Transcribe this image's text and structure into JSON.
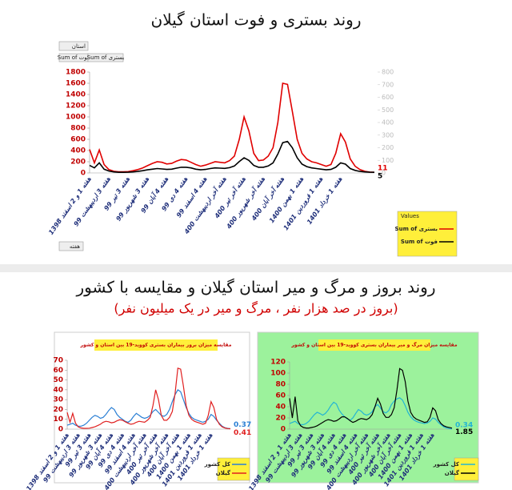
{
  "section_title": "روند بروز و مرگ و میر استان گیلان و مقایسه با کشور",
  "section_subtitle": "(بروز در صد هزار نفر ، مرگ و میر در یک میلیون نفر)",
  "chart_data": [
    {
      "type": "line",
      "title": "روند بستری و فوت استان گیلان",
      "filter_field": "استان",
      "axis_field": "هفته",
      "legend_title": "Values",
      "legend": "bottom-right",
      "categories": [
        "هفته 1 و 2 اسفند 1398",
        null,
        null,
        null,
        "هفته 3 اردیبهشت 99",
        null,
        null,
        null,
        "هفته 3 تیر 99",
        null,
        null,
        null,
        "هفته 3 شهریور 99",
        null,
        null,
        null,
        "هفته 4 آبان 99",
        null,
        null,
        null,
        "هفته 4 دی 99",
        null,
        null,
        null,
        "هفته 4 اسفند 99",
        null,
        null,
        null,
        "هفته آخر اردیبهشت 400",
        null,
        null,
        null,
        "هفته آخر تیر 400",
        null,
        null,
        null,
        "هفته آخر شهریور 400",
        null,
        null,
        null,
        "هفته آخر آبان 400",
        null,
        null,
        null,
        "هفته 1 بهمن 1400",
        null,
        null,
        null,
        "هفته 1 فروردین 1401",
        null,
        null,
        null,
        "هفته 1 خرداد 1401",
        null,
        null,
        null,
        null,
        null,
        null,
        null
      ],
      "ylim": [
        0,
        1800
      ],
      "yticks": [
        0,
        200,
        400,
        600,
        800,
        1000,
        1200,
        1400,
        1600,
        1800
      ],
      "y2lim": [
        0,
        800
      ],
      "y2ticks": [
        0,
        100,
        200,
        300,
        400,
        500,
        600,
        700,
        800
      ],
      "series": [
        {
          "name": "Sum of بستری",
          "color": "#e00000",
          "values": [
            420,
            180,
            410,
            150,
            60,
            30,
            20,
            20,
            25,
            40,
            60,
            90,
            130,
            170,
            200,
            190,
            160,
            170,
            210,
            240,
            230,
            190,
            150,
            120,
            140,
            170,
            200,
            190,
            180,
            220,
            300,
            600,
            1000,
            750,
            350,
            220,
            230,
            300,
            450,
            900,
            1600,
            1580,
            1100,
            600,
            350,
            250,
            200,
            180,
            150,
            120,
            150,
            350,
            700,
            550,
            250,
            120,
            60,
            30,
            15,
            11
          ]
        },
        {
          "name": "Sum of فوت",
          "color": "#000000",
          "axis": "y2",
          "values": [
            60,
            40,
            80,
            30,
            15,
            8,
            5,
            5,
            6,
            8,
            12,
            18,
            25,
            30,
            35,
            32,
            28,
            30,
            38,
            45,
            45,
            40,
            30,
            25,
            28,
            35,
            40,
            38,
            36,
            42,
            55,
            90,
            120,
            100,
            60,
            45,
            45,
            55,
            80,
            150,
            240,
            250,
            200,
            120,
            70,
            50,
            40,
            35,
            30,
            25,
            28,
            45,
            80,
            70,
            35,
            20,
            12,
            8,
            6,
            5
          ]
        }
      ]
    },
    {
      "type": "line",
      "title": "مقایسه میزان بروز بیماران بستری کووید-19 بین استان و کشور",
      "legend": "bottom-right",
      "background": "#ffffff",
      "categories": [
        "هفته 1 و 2 اسفند 1398",
        null,
        null,
        null,
        "هفته 3 اردیبهشت 99",
        null,
        null,
        null,
        "هفته 3 تیر 99",
        null,
        null,
        null,
        "هفته 3 شهریور 99",
        null,
        null,
        null,
        "هفته 4 آبان 99",
        null,
        null,
        null,
        "هفته 4 دی 99",
        null,
        null,
        null,
        "هفته 4 اسفند 99",
        null,
        null,
        null,
        "هفته آخر اردیبهشت 400",
        null,
        null,
        null,
        "هفته آخر تیر 400",
        null,
        null,
        null,
        "هفته آخر شهریور 400",
        null,
        null,
        null,
        "هفته آخر آبان 400",
        null,
        null,
        null,
        "هفته 1 بهمن 1400",
        null,
        null,
        null,
        "هفته 1 فروردین 1401",
        null,
        null,
        null,
        "هفته 1 خرداد 1401",
        null,
        null,
        null,
        null,
        null,
        null,
        null
      ],
      "ylim": [
        0,
        70
      ],
      "yticks": [
        0,
        10,
        20,
        30,
        40,
        50,
        60,
        70
      ],
      "series": [
        {
          "name": "کل کشور",
          "color": "#2a7fd4",
          "values": [
            4,
            5,
            6,
            4,
            3,
            3,
            4,
            6,
            9,
            12,
            14,
            13,
            11,
            12,
            15,
            19,
            22,
            20,
            15,
            12,
            10,
            8,
            7,
            9,
            13,
            16,
            14,
            12,
            11,
            12,
            14,
            18,
            20,
            17,
            14,
            13,
            15,
            20,
            28,
            35,
            40,
            38,
            30,
            22,
            16,
            12,
            10,
            9,
            8,
            7,
            8,
            10,
            15,
            13,
            9,
            6,
            3,
            1.5,
            0.8,
            0.37
          ]
        },
        {
          "name": "گیلان",
          "color": "#e02020",
          "values": [
            17,
            7,
            16,
            6,
            2.4,
            1.2,
            0.8,
            0.8,
            1,
            1.6,
            2.4,
            3.6,
            5,
            7,
            8,
            7.5,
            6.4,
            7,
            8.5,
            9.5,
            9,
            7.5,
            6,
            5,
            5.5,
            7,
            8,
            7.5,
            7,
            9,
            12,
            24,
            40,
            30,
            14,
            9,
            9,
            12,
            18,
            36,
            62,
            61,
            44,
            24,
            14,
            10,
            8,
            7,
            6,
            5,
            6,
            14,
            28,
            22,
            10,
            5,
            2.4,
            1.2,
            0.6,
            0.41
          ]
        }
      ]
    },
    {
      "type": "line",
      "title": "مقایسه میزان مرگ و میر بیماران بستری کووید-19 بین استان و کشور",
      "legend": "bottom-right",
      "background": "#9cf29c",
      "categories": [
        "هفته 1 و 2 اسفند 1398",
        null,
        null,
        null,
        "هفته 3 اردیبهشت 99",
        null,
        null,
        null,
        "هفته 3 تیر 99",
        null,
        null,
        null,
        "هفته 3 شهریور 99",
        null,
        null,
        null,
        "هفته 4 آبان 99",
        null,
        null,
        null,
        "هفته 4 دی 99",
        null,
        null,
        null,
        "هفته 4 اسفند 99",
        null,
        null,
        null,
        "هفته آخر اردیبهشت 400",
        null,
        null,
        null,
        "هفته آخر تیر 400",
        null,
        null,
        null,
        "هفته آخر شهریور 400",
        null,
        null,
        null,
        "هفته آخر آبان 400",
        null,
        null,
        null,
        "هفته 1 بهمن 1400",
        null,
        null,
        null,
        "هفته 1 فروردین 1401",
        null,
        null,
        null,
        "هفته 1 خرداد 1401",
        null,
        null,
        null,
        null,
        null,
        null,
        null
      ],
      "ylim": [
        0,
        120
      ],
      "yticks": [
        0,
        20,
        40,
        60,
        80,
        100,
        120
      ],
      "series": [
        {
          "name": "کل کشور",
          "color": "#23b5d3",
          "values": [
            10,
            12,
            14,
            10,
            8,
            8,
            10,
            14,
            20,
            26,
            30,
            28,
            25,
            28,
            34,
            42,
            48,
            45,
            34,
            27,
            22,
            18,
            16,
            20,
            28,
            35,
            32,
            27,
            25,
            27,
            31,
            40,
            44,
            38,
            31,
            29,
            33,
            44,
            50,
            54,
            56,
            52,
            42,
            30,
            22,
            17,
            14,
            12,
            11,
            10,
            11,
            14,
            20,
            18,
            12,
            8,
            4,
            2,
            1,
            0.34
          ]
        },
        {
          "name": "گیلان",
          "color": "#000000",
          "values": [
            55,
            20,
            58,
            15,
            6,
            3,
            2,
            2,
            3,
            4,
            6,
            9,
            12,
            15,
            17,
            16,
            14,
            15,
            18,
            22,
            22,
            19,
            15,
            12,
            14,
            17,
            19,
            18,
            17,
            20,
            26,
            40,
            55,
            45,
            28,
            21,
            21,
            26,
            38,
            70,
            108,
            105,
            85,
            50,
            30,
            22,
            18,
            16,
            14,
            12,
            13,
            21,
            38,
            33,
            17,
            10,
            6,
            4,
            3,
            1.85
          ]
        }
      ]
    }
  ]
}
